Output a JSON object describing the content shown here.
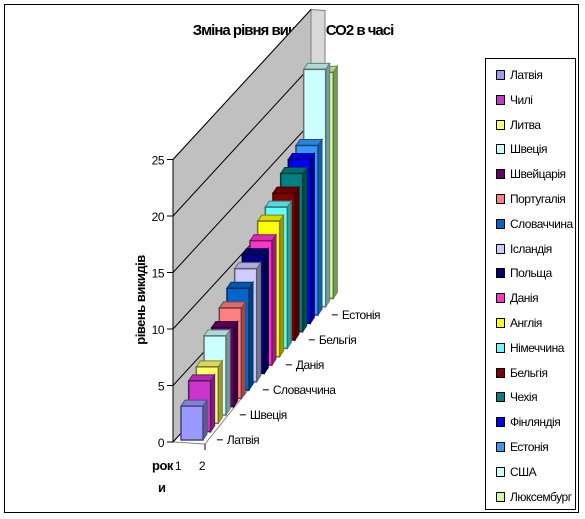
{
  "chart_data": {
    "type": "bar",
    "subtype": "3d-column",
    "title": "Зміна рівня викидів СО2 в часі",
    "ylabel": "рівень викидів",
    "xlabel": "роки",
    "ylim": [
      0,
      25
    ],
    "yticks": [
      "0",
      "5",
      "10",
      "15",
      "20",
      "25"
    ],
    "x_categories": [
      "1",
      "2"
    ],
    "depth_tick_labels": [
      "Латвія",
      "Швеція",
      "Словаччина",
      "Данія",
      "Бельгія",
      "Естонія"
    ],
    "grid": true,
    "legend_position": "right",
    "series": [
      {
        "name": "Латвія",
        "color": "#9999ff",
        "values": [
          null,
          3
        ]
      },
      {
        "name": "Чилі",
        "color": "#cc33cc",
        "values": [
          null,
          4.5
        ]
      },
      {
        "name": "Литва",
        "color": "#ffff66",
        "values": [
          null,
          5
        ]
      },
      {
        "name": "Швеція",
        "color": "#ccffff",
        "values": [
          null,
          7
        ]
      },
      {
        "name": "Швейцарія",
        "color": "#660066",
        "values": [
          null,
          7
        ]
      },
      {
        "name": "Португалія",
        "color": "#ff8080",
        "values": [
          null,
          8
        ]
      },
      {
        "name": "Словаччина",
        "color": "#0066cc",
        "values": [
          null,
          9
        ]
      },
      {
        "name": "Ісландія",
        "color": "#ccccff",
        "values": [
          null,
          10
        ]
      },
      {
        "name": "Польща",
        "color": "#000080",
        "values": [
          null,
          10.5
        ]
      },
      {
        "name": "Данія",
        "color": "#ff33cc",
        "values": [
          null,
          11
        ]
      },
      {
        "name": "Англія",
        "color": "#ffff00",
        "values": [
          null,
          12
        ]
      },
      {
        "name": "Німеччина",
        "color": "#66ffff",
        "values": [
          null,
          12.5
        ]
      },
      {
        "name": "Бельгія",
        "color": "#800000",
        "values": [
          null,
          13
        ]
      },
      {
        "name": "Чехія",
        "color": "#008080",
        "values": [
          null,
          14
        ]
      },
      {
        "name": "Фінляндія",
        "color": "#0000ff",
        "values": [
          null,
          14.5
        ]
      },
      {
        "name": "Естонія",
        "color": "#3399ff",
        "values": [
          null,
          15
        ]
      },
      {
        "name": "США",
        "color": "#ccffff",
        "values": [
          null,
          21
        ]
      },
      {
        "name": "Люксембург",
        "color": "#ccff99",
        "values": [
          null,
          20
        ]
      }
    ]
  }
}
